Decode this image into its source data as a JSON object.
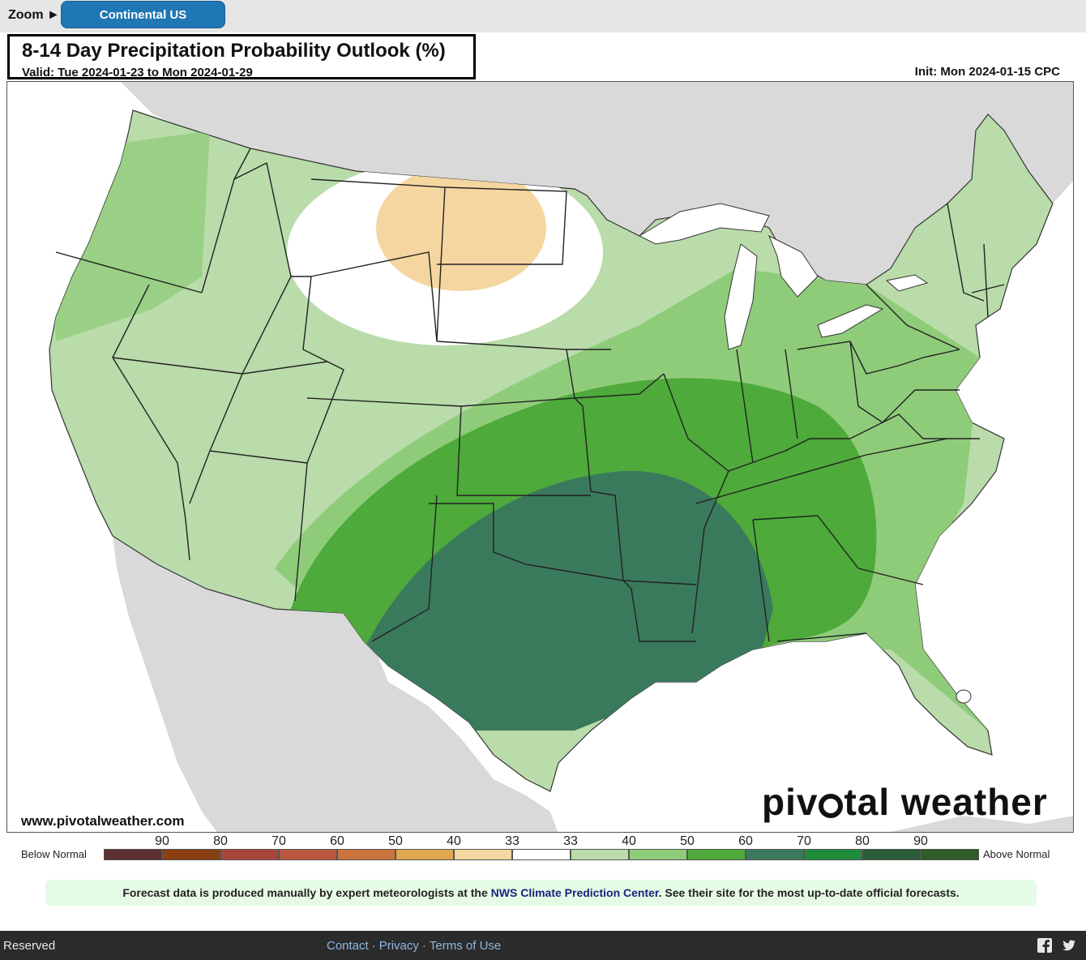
{
  "toolbar": {
    "zoom_label": "Zoom ►",
    "region_button": "Continental US"
  },
  "map": {
    "title": "8-14 Day Precipitation Probability Outlook (%)",
    "valid": "Valid: Tue 2024-01-23 to Mon 2024-01-29",
    "init": "Init: Mon 2024-01-15 CPC",
    "url": "www.pivotalweather.com",
    "logo_text_1": "piv",
    "logo_text_2": "tal weather",
    "colors": {
      "ocean": "#ffffff",
      "land_outside": "#d9d9d9",
      "near_normal": "#ffffff",
      "above_33": "#b9dcaa",
      "above_40": "#8fcc7a",
      "above_50": "#4eaa3a",
      "above_60": "#3a7a5c",
      "below_33": "#f5d6a0",
      "below_40": "#efc27a"
    }
  },
  "legend": {
    "below_label": "Below Normal",
    "above_label": "Above Normal",
    "ticks_below": [
      "90",
      "80",
      "70",
      "60",
      "50",
      "40",
      "33"
    ],
    "ticks_above": [
      "33",
      "40",
      "50",
      "60",
      "70",
      "80",
      "90"
    ],
    "swatch_colors": [
      "#5a3030",
      "#8a3f10",
      "#a8463e",
      "#b9583e",
      "#c9743e",
      "#e0a850",
      "#f5d6a0",
      "#ffffff",
      "#b9dcaa",
      "#8fcc7a",
      "#4eaa3a",
      "#3a7a5c",
      "#1f8c3a",
      "#2a5c3a",
      "#2f5c28"
    ]
  },
  "notice": {
    "before": "Forecast data is produced manually by expert meteorologists at the ",
    "link": "NWS Climate Prediction Center",
    "after": ". See their site for the most up-to-date official forecasts."
  },
  "footer": {
    "left": "Reserved",
    "contact": "Contact",
    "privacy": "Privacy",
    "terms": "Terms of Use",
    "sep": "·"
  }
}
